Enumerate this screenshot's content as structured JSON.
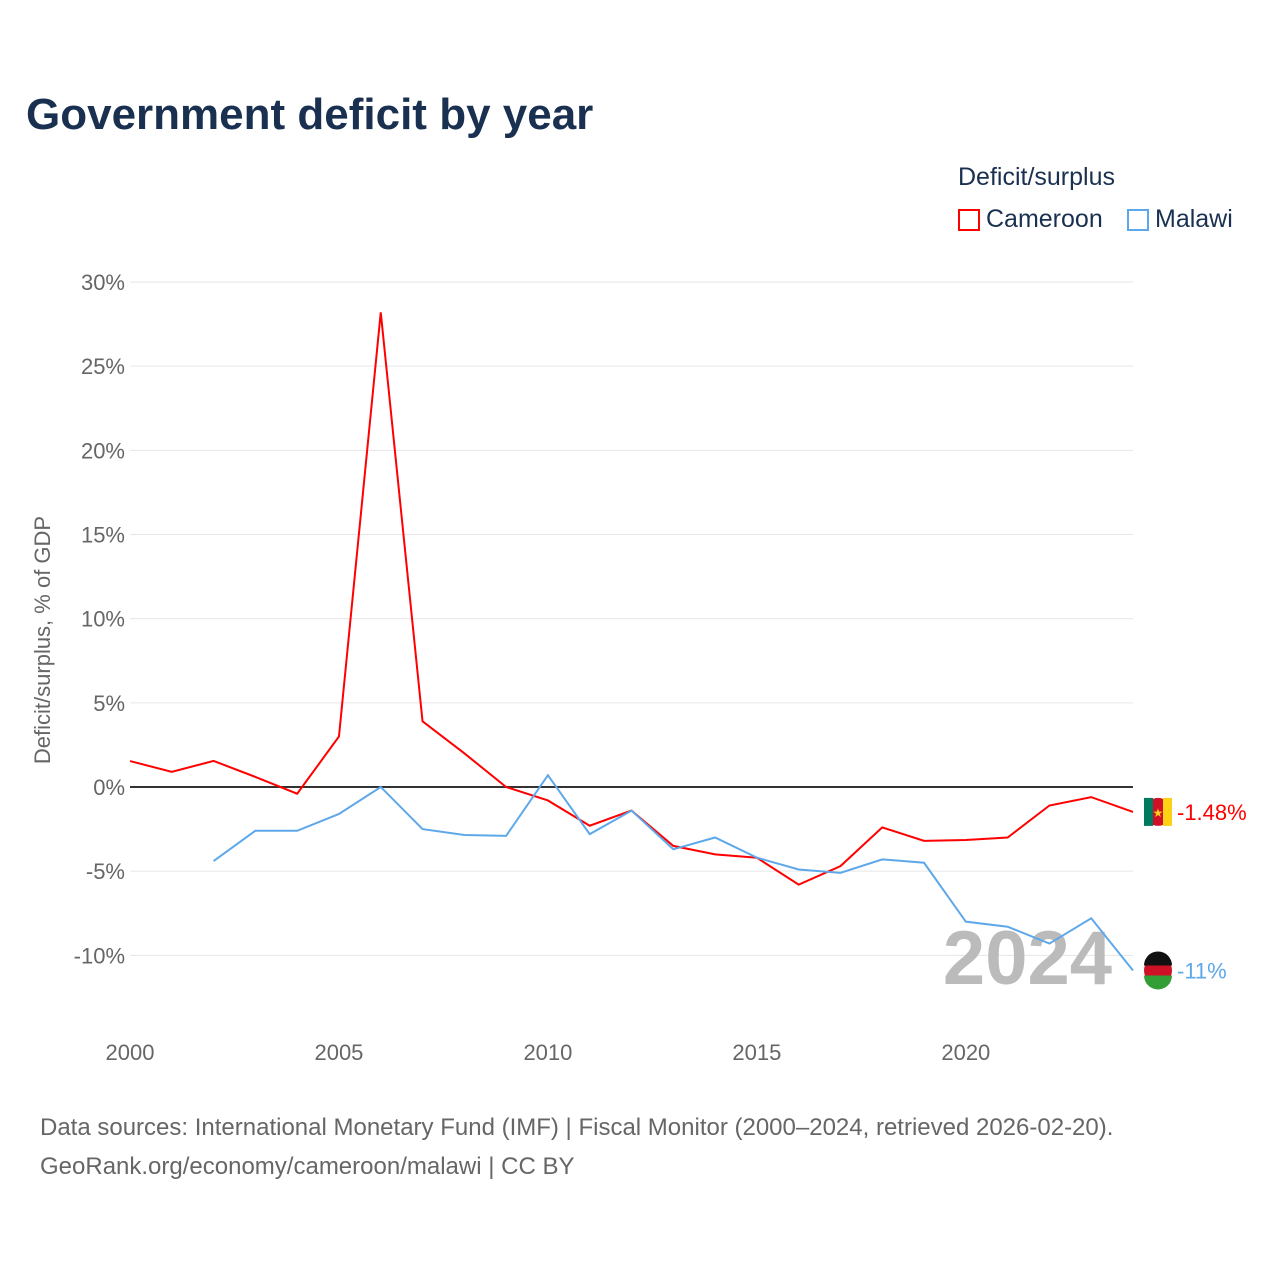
{
  "title": "Government deficit by year",
  "legend": {
    "title": "Deficit/surplus",
    "items": [
      {
        "label": "Cameroon",
        "color": "#ff0000"
      },
      {
        "label": "Malawi",
        "color": "#5ea8ea"
      }
    ]
  },
  "source": {
    "line1": "Data sources: International Monetary Fund (IMF) | Fiscal Monitor (2000–2024, retrieved 2026-02-20).",
    "line2": "GeoRank.org/economy/cameroon/malawi | CC BY"
  },
  "chart_data": {
    "type": "line",
    "title": "Government deficit by year",
    "ylabel": "Deficit/surplus, % of GDP",
    "xlabel": "",
    "xlim": [
      2000,
      2024
    ],
    "ylim": [
      -13,
      31
    ],
    "xticks": [
      2000,
      2005,
      2010,
      2015,
      2020
    ],
    "xtick_labels": [
      "2000",
      "2005",
      "2010",
      "2015",
      "2020"
    ],
    "yticks": [
      30,
      25,
      20,
      15,
      10,
      5,
      0,
      -5,
      -10
    ],
    "ytick_labels": [
      "30%",
      "25%",
      "20%",
      "15%",
      "10%",
      "5%",
      "0%",
      "-5%",
      "-10%"
    ],
    "year_watermark": "2024",
    "series": [
      {
        "name": "Cameroon",
        "color": "#ff0000",
        "end_label": "-1.48%",
        "x": [
          2000,
          2001,
          2002,
          2003,
          2004,
          2005,
          2006,
          2007,
          2008,
          2009,
          2010,
          2011,
          2012,
          2013,
          2014,
          2015,
          2016,
          2017,
          2018,
          2019,
          2020,
          2021,
          2022,
          2023,
          2024
        ],
        "values": [
          1.54,
          0.9,
          1.55,
          0.6,
          -0.4,
          3.0,
          28.2,
          3.9,
          2.0,
          0,
          -0.8,
          -2.3,
          -1.4,
          -3.5,
          -4.0,
          -4.2,
          -5.8,
          -4.7,
          -2.4,
          -3.2,
          -3.15,
          -3.0,
          -1.1,
          -0.6,
          -1.48
        ]
      },
      {
        "name": "Malawi",
        "color": "#5ea8ea",
        "end_label": "-11%",
        "x": [
          2002,
          2003,
          2004,
          2005,
          2006,
          2007,
          2008,
          2009,
          2010,
          2011,
          2012,
          2013,
          2014,
          2015,
          2016,
          2017,
          2018,
          2019,
          2020,
          2021,
          2022,
          2023,
          2024
        ],
        "values": [
          -4.4,
          -2.6,
          -2.6,
          -1.6,
          0,
          -2.5,
          -2.85,
          -2.9,
          0.7,
          -2.8,
          -1.4,
          -3.7,
          -3.0,
          -4.2,
          -4.9,
          -5.1,
          -4.3,
          -4.5,
          -8.0,
          -8.3,
          -9.3,
          -7.8,
          -10.9
        ]
      }
    ]
  }
}
